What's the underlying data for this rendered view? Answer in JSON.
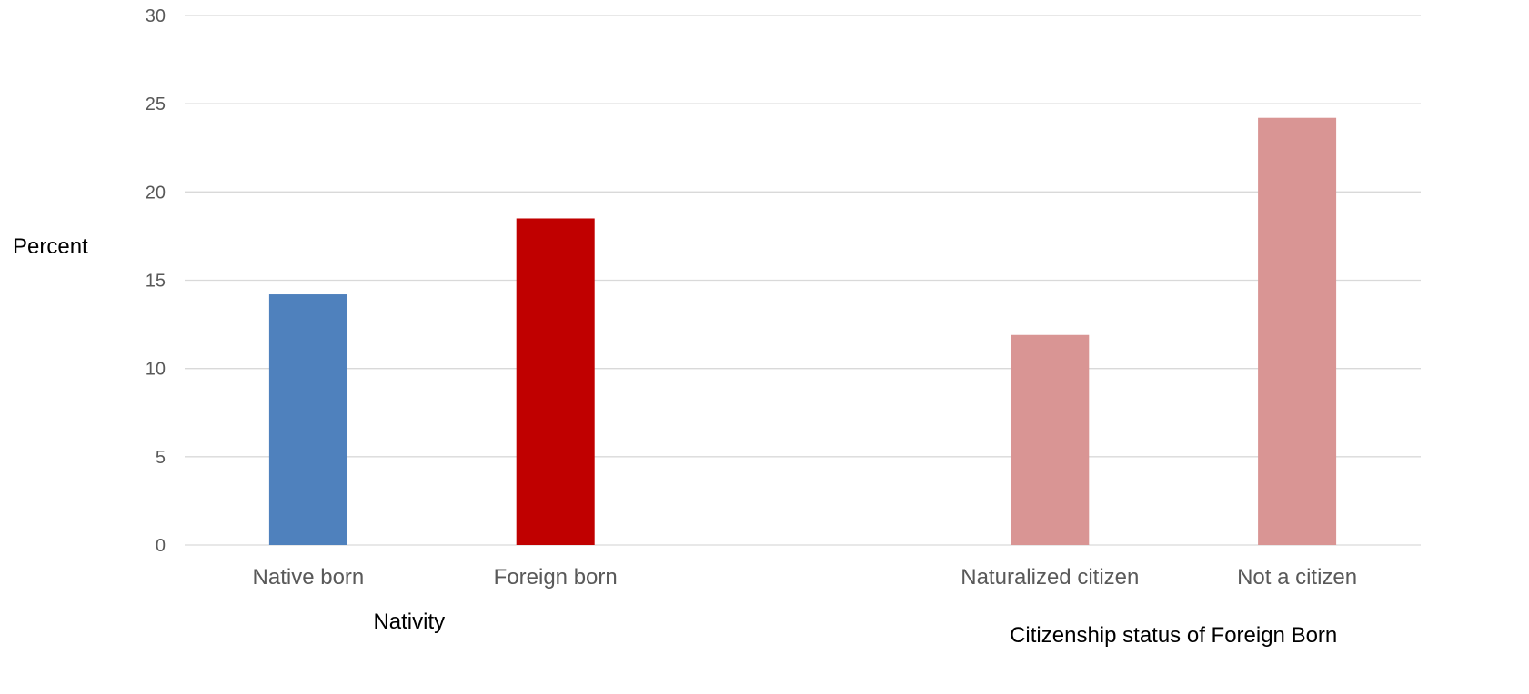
{
  "chart_data": {
    "type": "bar",
    "title": "",
    "ylabel": "Percent",
    "ylim": [
      0,
      30
    ],
    "yticks": [
      0,
      5,
      10,
      15,
      20,
      25,
      30
    ],
    "grid": true,
    "groups": [
      {
        "xlabel": "Nativity",
        "categories": [
          "Native born",
          "Foreign born"
        ],
        "values": [
          14.2,
          18.5
        ],
        "colors": [
          "#4f81bd",
          "#c00000"
        ]
      },
      {
        "xlabel": "Citizenship status of Foreign Born",
        "categories": [
          "Naturalized citizen",
          "Not a citizen"
        ],
        "values": [
          11.9,
          24.2
        ],
        "colors": [
          "#d99594",
          "#d99594"
        ]
      }
    ]
  }
}
